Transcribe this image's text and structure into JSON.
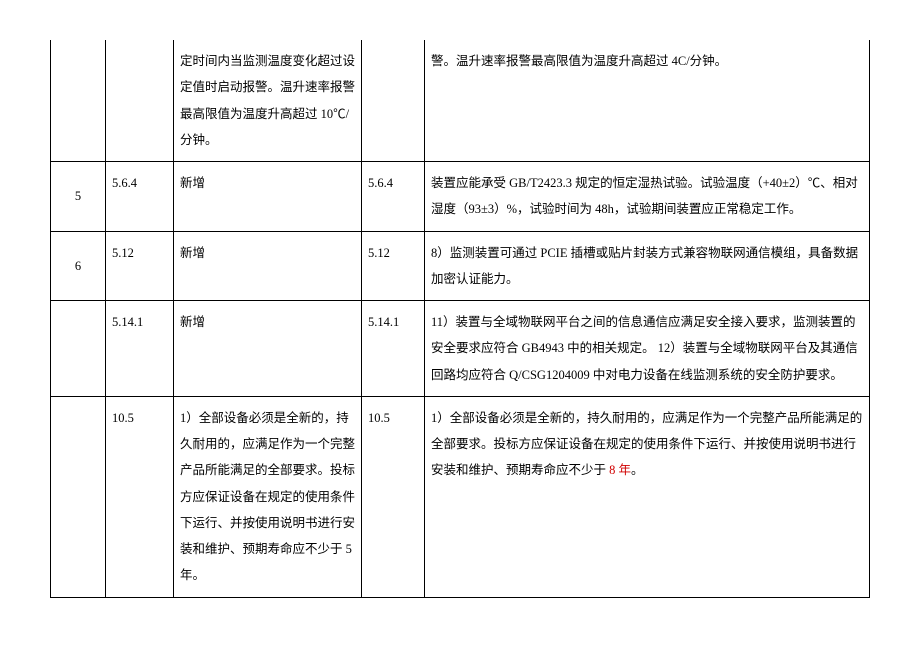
{
  "rows": [
    {
      "idx": "",
      "sec": "",
      "old": "定时间内当监测温度变化超过设定值时启动报警。温升速率报警最高限值为温度升高超过 10℃/分钟。",
      "sec2": "",
      "new": "警。温升速率报警最高限值为温度升高超过 4C/分钟。"
    },
    {
      "idx": "5",
      "sec": "5.6.4",
      "old": "新增",
      "sec2": "5.6.4",
      "new": "装置应能承受 GB/T2423.3 规定的恒定湿热试验。试验温度（+40±2）℃、相对湿度（93±3）%，试验时间为 48h，试验期间装置应正常稳定工作。"
    },
    {
      "idx": "6",
      "sec": "5.12",
      "old": "新增",
      "sec2": "5.12",
      "new": "8）监测装置可通过 PCIE 插槽或贴片封装方式兼容物联网通信模组，具备数据加密认证能力。"
    },
    {
      "idx": "",
      "sec": "5.14.1",
      "old": "新增",
      "sec2": "5.14.1",
      "new": "11）装置与全域物联网平台之间的信息通信应满足安全接入要求，监测装置的安全要求应符合 GB4943 中的相关规定。\n12）装置与全域物联网平台及其通信回路均应符合 Q/CSG1204009 中对电力设备在线监测系统的安全防护要求。"
    },
    {
      "idx": "",
      "sec": "10.5",
      "old": "1）全部设备必须是全新的，持久耐用的，应满足作为一个完整产品所能满足的全部要求。投标方应保证设备在规定的使用条件下运行、并按使用说明书进行安装和维护、预期寿命应不少于 5 年。",
      "sec2": "10.5",
      "new_prefix": "1）全部设备必须是全新的，持久耐用的，应满足作为一个完整产品所能满足的全部要求。投标方应保证设备在规定的使用条件下运行、并按使用说明书进行安装和维护、预期寿命应不少于 ",
      "new_red": "8 年",
      "new_suffix": "。"
    }
  ]
}
